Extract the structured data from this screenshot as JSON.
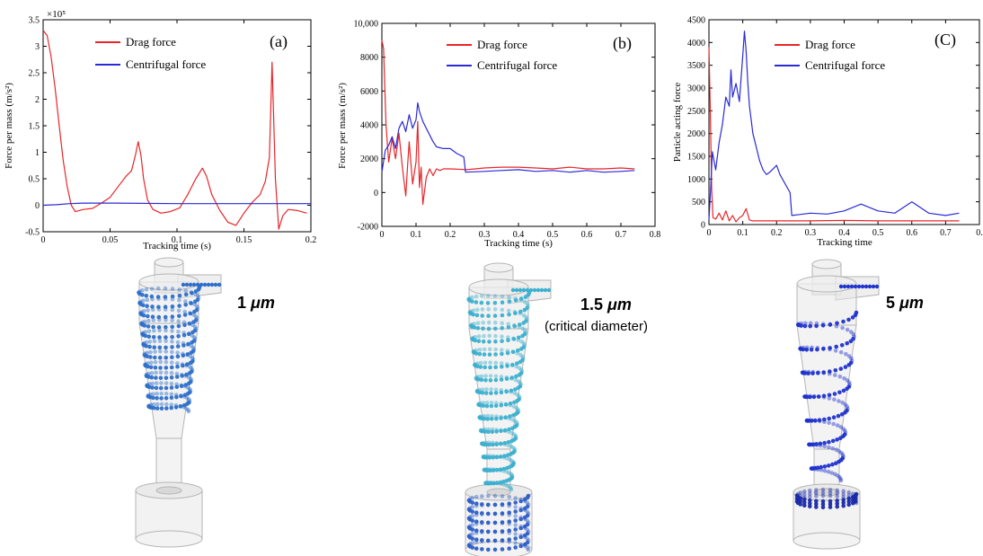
{
  "chart_data": [
    {
      "type": "line",
      "panel_label": "(a)",
      "xlabel": "Tracking time (s)",
      "ylabel": "Force per mass (m/s²)",
      "y_multiplier": "×10⁵",
      "xlim": [
        0,
        0.2
      ],
      "ylim": [
        -0.5,
        3.5
      ],
      "xticks": [
        0,
        0.05,
        0.1,
        0.15,
        0.2
      ],
      "xtick_labels": [
        "0",
        "0.05",
        "0.1",
        "0.15",
        "0.2"
      ],
      "yticks": [
        -0.5,
        0,
        0.5,
        1,
        1.5,
        2,
        2.5,
        3,
        3.5
      ],
      "ytick_labels": [
        "-0.5",
        "0",
        "0.5",
        "1",
        "1.5",
        "2",
        "2.5",
        "3",
        "3.5"
      ],
      "legend_position": "top",
      "series": [
        {
          "name": "Drag force",
          "color": "#e8262b",
          "x": [
            0,
            0.003,
            0.006,
            0.009,
            0.012,
            0.015,
            0.018,
            0.021,
            0.024,
            0.03,
            0.037,
            0.044,
            0.05,
            0.056,
            0.062,
            0.066,
            0.069,
            0.071,
            0.073,
            0.075,
            0.078,
            0.082,
            0.088,
            0.095,
            0.102,
            0.108,
            0.114,
            0.119,
            0.122,
            0.126,
            0.132,
            0.138,
            0.144,
            0.15,
            0.156,
            0.162,
            0.166,
            0.169,
            0.171,
            0.1735,
            0.176,
            0.179,
            0.183,
            0.19,
            0.197
          ],
          "y": [
            3.3,
            3.2,
            2.8,
            2.2,
            1.5,
            0.85,
            0.35,
            0.0,
            -0.12,
            -0.08,
            -0.06,
            0.05,
            0.15,
            0.35,
            0.55,
            0.65,
            0.95,
            1.2,
            0.95,
            0.5,
            0.1,
            -0.08,
            -0.15,
            -0.12,
            -0.05,
            0.2,
            0.5,
            0.7,
            0.55,
            0.2,
            -0.1,
            -0.32,
            -0.38,
            -0.15,
            0.05,
            0.2,
            0.45,
            0.9,
            2.7,
            0.5,
            -0.45,
            -0.2,
            -0.08,
            -0.1,
            -0.15
          ]
        },
        {
          "name": "Centrifugal force",
          "color": "#2a2ad6",
          "x": [
            0,
            0.01,
            0.02,
            0.03,
            0.05,
            0.1,
            0.15,
            0.2
          ],
          "y": [
            0.0,
            0.01,
            0.03,
            0.04,
            0.04,
            0.03,
            0.03,
            0.03
          ]
        }
      ]
    },
    {
      "type": "line",
      "panel_label": "(b)",
      "xlabel": "Tracking time (s)",
      "ylabel": "Force per mass (m/s²)",
      "xlim": [
        0,
        0.8
      ],
      "ylim": [
        -2000,
        10000
      ],
      "xticks": [
        0,
        0.1,
        0.2,
        0.3,
        0.4,
        0.5,
        0.6,
        0.7,
        0.8
      ],
      "xtick_labels": [
        "0",
        "0.1",
        "0.2",
        "0.3",
        "0.4",
        "0.5",
        "0.6",
        "0.7",
        "0.8"
      ],
      "yticks": [
        -2000,
        0,
        2000,
        4000,
        6000,
        8000,
        10000
      ],
      "ytick_labels": [
        "-2000",
        "0",
        "2000",
        "4000",
        "6000",
        "8000",
        "10,000"
      ],
      "legend_position": "top",
      "series": [
        {
          "name": "Drag force",
          "color": "#e8262b",
          "x": [
            0,
            0.005,
            0.012,
            0.02,
            0.03,
            0.04,
            0.05,
            0.06,
            0.07,
            0.075,
            0.08,
            0.09,
            0.1,
            0.105,
            0.11,
            0.115,
            0.12,
            0.13,
            0.14,
            0.15,
            0.16,
            0.17,
            0.18,
            0.2,
            0.25,
            0.3,
            0.35,
            0.4,
            0.45,
            0.5,
            0.55,
            0.6,
            0.65,
            0.7,
            0.74
          ],
          "y": [
            9000,
            8500,
            4000,
            1800,
            3200,
            2000,
            3500,
            1500,
            -200,
            1500,
            3000,
            500,
            1800,
            4200,
            300,
            1500,
            -700,
            900,
            1400,
            1000,
            1400,
            1300,
            1400,
            1400,
            1350,
            1450,
            1500,
            1500,
            1450,
            1400,
            1500,
            1400,
            1400,
            1450,
            1400
          ]
        },
        {
          "name": "Centrifugal force",
          "color": "#2a2ad6",
          "x": [
            0,
            0.01,
            0.02,
            0.03,
            0.04,
            0.05,
            0.06,
            0.07,
            0.08,
            0.09,
            0.1,
            0.105,
            0.11,
            0.12,
            0.13,
            0.14,
            0.15,
            0.16,
            0.18,
            0.2,
            0.22,
            0.24,
            0.245,
            0.3,
            0.35,
            0.4,
            0.45,
            0.5,
            0.55,
            0.6,
            0.65,
            0.7,
            0.74
          ],
          "y": [
            1200,
            2500,
            2800,
            3300,
            2600,
            3800,
            4200,
            3600,
            4600,
            3800,
            4300,
            5300,
            4800,
            4200,
            3800,
            3400,
            3000,
            2700,
            2600,
            2600,
            2300,
            2100,
            1200,
            1250,
            1300,
            1350,
            1250,
            1300,
            1200,
            1300,
            1200,
            1250,
            1300
          ]
        }
      ]
    },
    {
      "type": "line",
      "panel_label": "(C)",
      "xlabel": "Tracking time",
      "ylabel": "Particle acting force",
      "xlim": [
        0,
        0.8
      ],
      "ylim": [
        0,
        4500
      ],
      "xticks": [
        0,
        0.1,
        0.2,
        0.3,
        0.4,
        0.5,
        0.6,
        0.7,
        0.8
      ],
      "xtick_labels": [
        "0",
        "0.1",
        "0.2",
        "0.3",
        "0.4",
        "0.5",
        "0.6",
        "0.7",
        "0."
      ],
      "yticks": [
        0,
        500,
        1000,
        1500,
        2000,
        2500,
        3000,
        3500,
        4000,
        4500
      ],
      "ytick_labels": [
        "0",
        "500",
        "1000",
        "1500",
        "2000",
        "2500",
        "3000",
        "3500",
        "4000",
        "4500"
      ],
      "legend_position": "top",
      "series": [
        {
          "name": "Drag force",
          "color": "#e8262b",
          "x": [
            0,
            0.004,
            0.008,
            0.012,
            0.02,
            0.03,
            0.04,
            0.05,
            0.06,
            0.07,
            0.08,
            0.09,
            0.1,
            0.11,
            0.12,
            0.13,
            0.15,
            0.2,
            0.3,
            0.4,
            0.5,
            0.6,
            0.7,
            0.74
          ],
          "y": [
            3900,
            2500,
            800,
            150,
            120,
            250,
            100,
            300,
            80,
            200,
            60,
            150,
            200,
            350,
            100,
            80,
            80,
            80,
            80,
            90,
            80,
            80,
            80,
            80
          ]
        },
        {
          "name": "Centrifugal force",
          "color": "#2a2ad6",
          "x": [
            0,
            0.005,
            0.01,
            0.02,
            0.03,
            0.04,
            0.05,
            0.06,
            0.065,
            0.07,
            0.08,
            0.09,
            0.095,
            0.1,
            0.105,
            0.11,
            0.115,
            0.12,
            0.13,
            0.14,
            0.15,
            0.16,
            0.17,
            0.18,
            0.2,
            0.21,
            0.24,
            0.245,
            0.3,
            0.35,
            0.4,
            0.45,
            0.5,
            0.55,
            0.6,
            0.65,
            0.7,
            0.74
          ],
          "y": [
            100,
            800,
            1600,
            1200,
            1800,
            2200,
            2800,
            2600,
            3400,
            2800,
            3100,
            2700,
            3200,
            3700,
            4250,
            3800,
            3100,
            2600,
            2000,
            1700,
            1400,
            1200,
            1100,
            1150,
            1300,
            1100,
            700,
            200,
            250,
            230,
            300,
            450,
            300,
            250,
            500,
            250,
            200,
            250
          ]
        }
      ]
    }
  ],
  "illustrations": [
    {
      "label_value": "1",
      "label_unit": "μm",
      "note": "",
      "color": "#2d6fc9"
    },
    {
      "label_value": "1.5",
      "label_unit": "μm",
      "note": "(critical diameter)",
      "color": "#3bb0cf"
    },
    {
      "label_value": "5",
      "label_unit": "μm",
      "note": "",
      "color": "#1f33cc"
    }
  ]
}
